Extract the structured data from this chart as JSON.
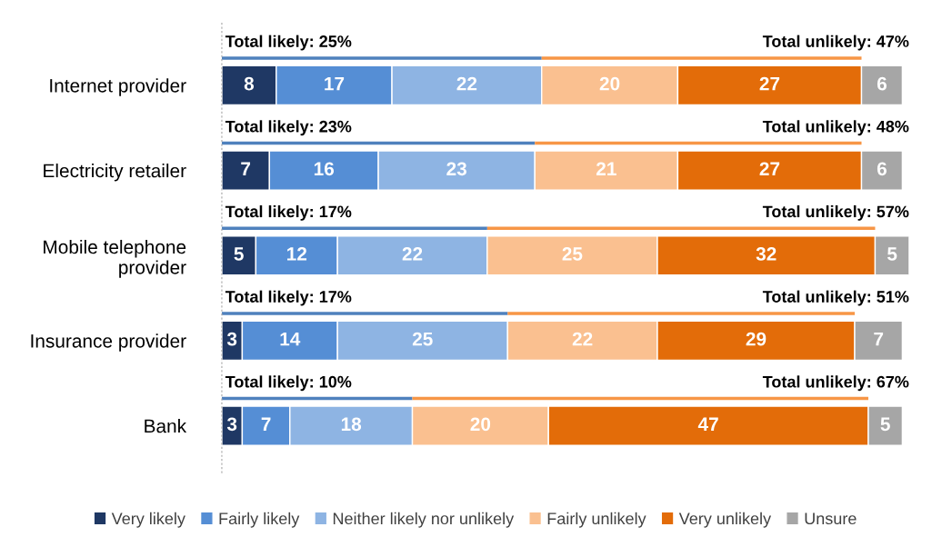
{
  "chart_data": {
    "type": "bar",
    "orientation": "horizontal",
    "stacked": true,
    "data_labels": true,
    "legend": "bottom",
    "grid": false,
    "categories": [
      "Internet provider",
      "Electricity retailer",
      "Mobile telephone\nprovider",
      "Insurance provider",
      "Bank"
    ],
    "series": [
      {
        "name": "Very likely",
        "color": "#1f3864",
        "values": [
          8,
          7,
          5,
          3,
          3
        ]
      },
      {
        "name": "Fairly likely",
        "color": "#558ed5",
        "values": [
          17,
          16,
          12,
          14,
          7
        ]
      },
      {
        "name": "Neither likely nor unlikely",
        "color": "#8eb4e3",
        "values": [
          22,
          23,
          22,
          25,
          18
        ]
      },
      {
        "name": "Fairly unlikely",
        "color": "#fac090",
        "values": [
          20,
          21,
          25,
          22,
          20
        ]
      },
      {
        "name": "Very unlikely",
        "color": "#e36c09",
        "values": [
          27,
          27,
          32,
          29,
          47
        ]
      },
      {
        "name": "Unsure",
        "color": "#a6a6a6",
        "values": [
          6,
          6,
          5,
          7,
          5
        ]
      }
    ],
    "annotations": [
      "Total likely: 25%",
      "Total unlikely: 47%",
      "Total likely: 23%",
      "Total unlikely: 48%",
      "Total likely: 17%",
      "Total unlikely: 57%",
      "Total likely: 17%",
      "Total unlikely: 51%",
      "Total likely: 10%",
      "Total unlikely: 67%"
    ]
  }
}
